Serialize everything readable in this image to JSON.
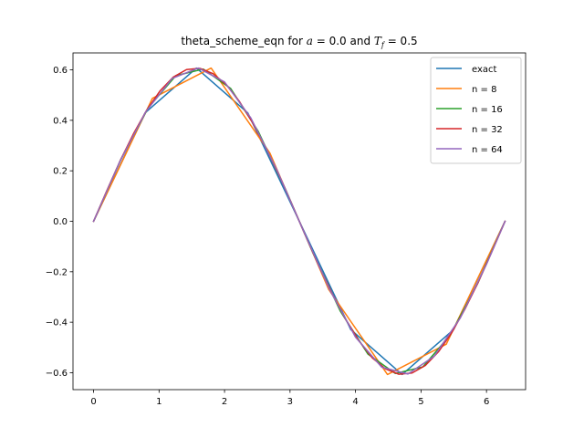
{
  "chart_data": {
    "type": "line",
    "title": {
      "prefix": "theta_scheme_eqn for ",
      "a_var": "a",
      "a_eq": " = 0.0 and ",
      "t_var": "T",
      "t_sub": "f",
      "t_eq": " = 0.5"
    },
    "xlabel": "",
    "ylabel": "",
    "xlim": [
      -0.314,
      6.597
    ],
    "ylim": [
      -0.667,
      0.667
    ],
    "xticks": [
      0,
      1,
      2,
      3,
      4,
      5,
      6
    ],
    "xtick_labels": [
      "0",
      "1",
      "2",
      "3",
      "4",
      "5",
      "6"
    ],
    "yticks": [
      -0.6,
      -0.4,
      -0.2,
      0.0,
      0.2,
      0.4,
      0.6
    ],
    "ytick_labels": [
      "−0.6",
      "−0.4",
      "−0.2",
      "0.0",
      "0.2",
      "0.4",
      "0.6"
    ],
    "grid": false,
    "legend_position": "top-right",
    "series": [
      {
        "name": "exact",
        "color": "#1f77b4",
        "x": [
          0,
          0.785,
          1.571,
          2.356,
          3.142,
          3.927,
          4.712,
          5.498,
          6.283
        ],
        "y": [
          0,
          0.429,
          0.607,
          0.429,
          0,
          -0.429,
          -0.607,
          -0.429,
          0
        ]
      },
      {
        "name": "n = 8",
        "color": "#ff7f0e",
        "x": [
          0,
          0.898,
          1.795,
          2.693,
          3.59,
          4.488,
          5.386,
          6.283
        ],
        "y": [
          0,
          0.487,
          0.607,
          0.27,
          -0.27,
          -0.607,
          -0.487,
          0
        ]
      },
      {
        "name": "n = 16",
        "color": "#2ca02c",
        "x": [
          0,
          0.419,
          0.838,
          1.257,
          1.676,
          2.094,
          2.513,
          2.932,
          3.351,
          3.77,
          4.189,
          4.608,
          5.027,
          5.445,
          5.864,
          6.283
        ],
        "y": [
          0,
          0.247,
          0.451,
          0.577,
          0.603,
          0.526,
          0.357,
          0.126,
          -0.126,
          -0.357,
          -0.526,
          -0.603,
          -0.577,
          -0.451,
          -0.247,
          0
        ]
      },
      {
        "name": "n = 32",
        "color": "#d62728",
        "x": [
          0,
          0.203,
          0.405,
          0.608,
          0.811,
          1.013,
          1.216,
          1.419,
          1.621,
          1.824,
          2.027,
          2.229,
          2.432,
          2.635,
          2.837,
          3.04,
          3.243,
          3.446,
          3.648,
          3.851,
          4.054,
          4.256,
          4.459,
          4.662,
          4.864,
          5.067,
          5.27,
          5.472,
          5.675,
          5.878,
          6.08,
          6.283
        ],
        "y": [
          0,
          0.122,
          0.239,
          0.346,
          0.44,
          0.516,
          0.571,
          0.601,
          0.606,
          0.585,
          0.541,
          0.474,
          0.389,
          0.289,
          0.18,
          0.061,
          -0.061,
          -0.18,
          -0.289,
          -0.389,
          -0.474,
          -0.541,
          -0.585,
          -0.606,
          -0.601,
          -0.571,
          -0.516,
          -0.44,
          -0.346,
          -0.239,
          -0.122,
          0
        ]
      },
      {
        "name": "n = 64",
        "color": "#9467bd",
        "x": [
          0,
          0.4,
          0.8,
          1.2,
          1.6,
          2.0,
          2.4,
          2.8,
          3.2,
          3.6,
          4.0,
          4.4,
          4.8,
          5.2,
          5.6,
          6.0,
          6.283
        ],
        "y": [
          0,
          0.236,
          0.435,
          0.566,
          0.607,
          0.552,
          0.41,
          0.203,
          -0.035,
          -0.268,
          -0.459,
          -0.578,
          -0.605,
          -0.535,
          -0.383,
          -0.17,
          0
        ]
      }
    ]
  }
}
